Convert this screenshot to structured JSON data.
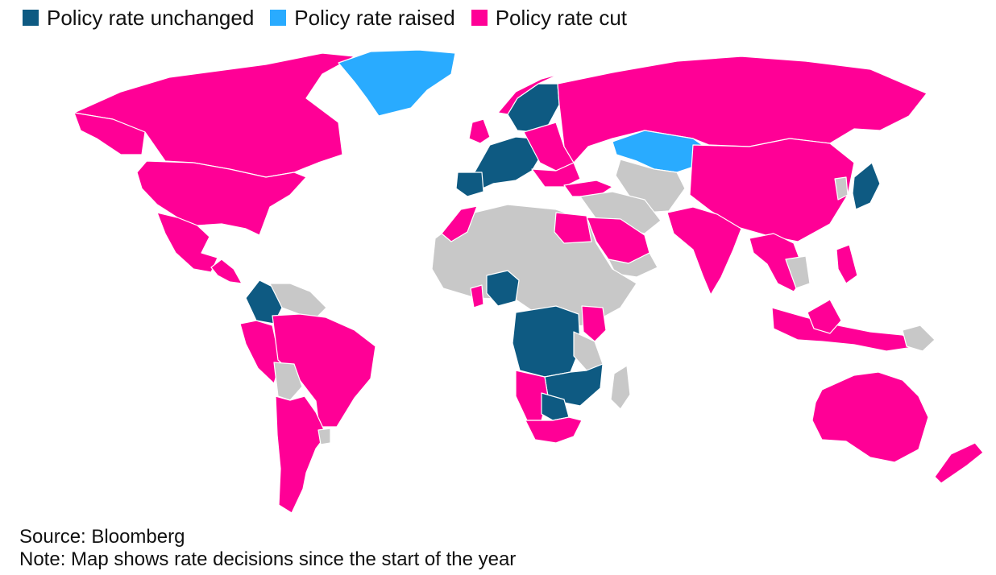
{
  "legend": {
    "items": [
      {
        "label": "Policy rate unchanged",
        "color": "#0e5a82"
      },
      {
        "label": "Policy rate raised",
        "color": "#29abff"
      },
      {
        "label": "Policy rate cut",
        "color": "#ff0096"
      }
    ]
  },
  "no_data_color": "#c8c8c8",
  "footer": {
    "source": "Source: Bloomberg",
    "note": "Note: Map shows rate decisions since the start of the year"
  }
}
